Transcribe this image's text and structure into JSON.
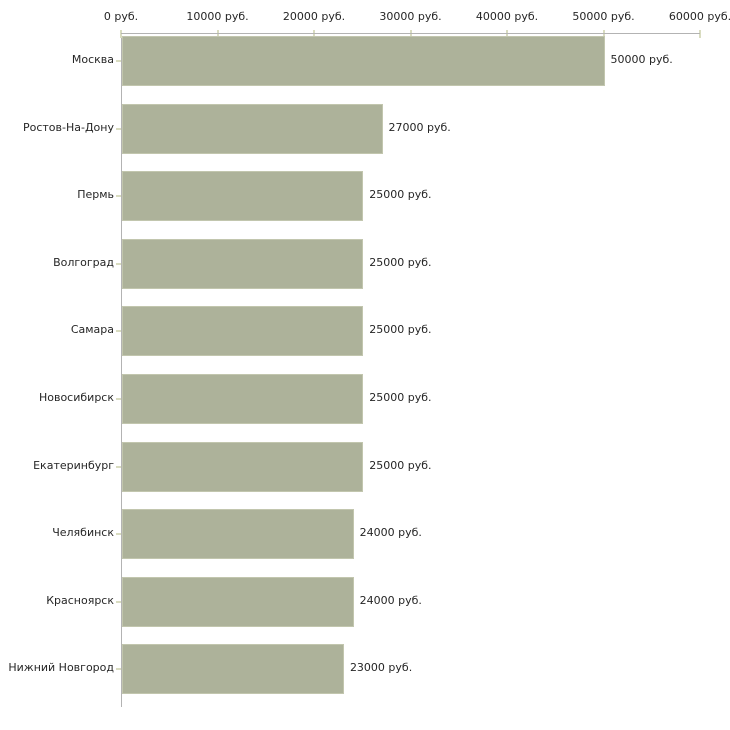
{
  "chart_data": {
    "type": "bar",
    "orientation": "horizontal",
    "title": "",
    "xlabel": "",
    "ylabel": "",
    "unit": "руб.",
    "categories": [
      "Москва",
      "Ростов-На-Дону",
      "Пермь",
      "Волгоград",
      "Самара",
      "Новосибирск",
      "Екатеринбург",
      "Челябинск",
      "Красноярск",
      "Нижний Новгород"
    ],
    "values": [
      50000,
      27000,
      25000,
      25000,
      25000,
      25000,
      25000,
      24000,
      24000,
      23000
    ],
    "value_labels": [
      "50000 руб.",
      "27000 руб.",
      "25000 руб.",
      "25000 руб.",
      "25000 руб.",
      "25000 руб.",
      "25000 руб.",
      "24000 руб.",
      "24000 руб.",
      "23000 руб."
    ],
    "x_tick_values": [
      0,
      10000,
      20000,
      30000,
      40000,
      50000,
      60000
    ],
    "x_tick_labels": [
      "0 руб.",
      "10000 руб.",
      "20000 руб.",
      "30000 руб.",
      "40000 руб.",
      "50000 руб.",
      "60000 руб."
    ],
    "xlim": [
      0,
      60000
    ],
    "grid": false,
    "legend": false,
    "bar_color": "#adb29a",
    "bar_border_color": "#c2c6ae",
    "axis_color": "#b3b3b3",
    "tick_color": "#d9dcc0",
    "text_color": "#262626"
  }
}
